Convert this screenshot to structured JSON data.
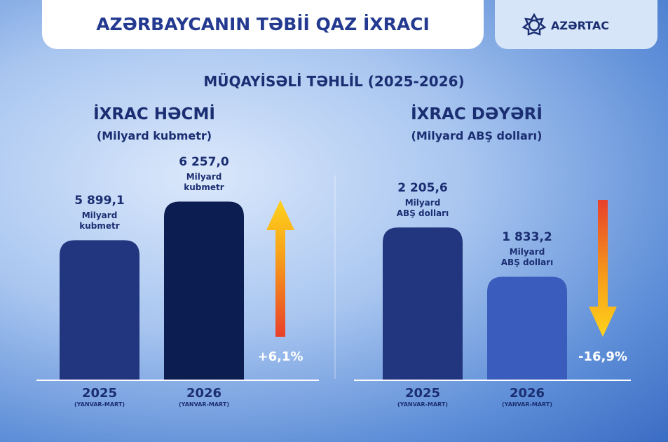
{
  "header": {
    "title": "AZƏRBAYCANIN TƏBİİ QAZ İXRACI",
    "logo": "AZƏRTAC",
    "subtitle": "MÜQAYİSƏLİ TƏHLİL (2025-2026)"
  },
  "chart_data": [
    {
      "type": "bar",
      "title": "İXRAC HƏCMİ",
      "subtitle": "(Milyard kubmetr)",
      "value_unit": "Milyard kubmetr",
      "categories": [
        "2025",
        "2026"
      ],
      "category_notes": [
        "(YANVAR-MART)",
        "(YANVAR-MART)"
      ],
      "values": [
        5899.1,
        6257.0
      ],
      "value_labels": [
        "5 899,1",
        "6 257,0"
      ],
      "colors": [
        "#22367f",
        "#0c1d52"
      ],
      "ylim": [
        4600,
        6500
      ],
      "change": {
        "value": 6.1,
        "label": "+6,1%"
      }
    },
    {
      "type": "bar",
      "title": "İXRAC DƏYƏRİ",
      "subtitle": "(Milyard ABŞ dolları)",
      "value_unit": "Milyard ABŞ dolları",
      "categories": [
        "2025",
        "2026"
      ],
      "category_notes": [
        "(YANVAR-MART)",
        "(YANVAR-MART)"
      ],
      "values": [
        2205.6,
        1833.2
      ],
      "value_labels": [
        "2 205,6",
        "1 833,2"
      ],
      "colors": [
        "#22367f",
        "#3a5cbc"
      ],
      "ylim": [
        1050,
        2600
      ],
      "change": {
        "value": -16.9,
        "label": "-16,9%"
      }
    }
  ]
}
